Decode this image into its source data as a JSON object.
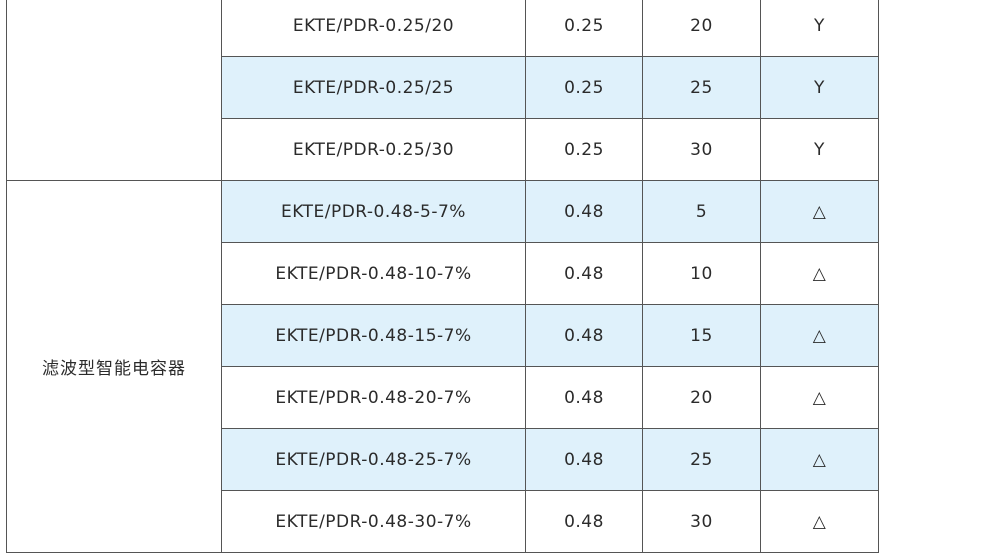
{
  "groups": [
    {
      "category": "",
      "rows": [
        {
          "model": "EKTE/PDR-0.25/20",
          "voltage": "0.25",
          "capacity": "20",
          "flag": "Y",
          "shaded": false
        },
        {
          "model": "EKTE/PDR-0.25/25",
          "voltage": "0.25",
          "capacity": "25",
          "flag": "Y",
          "shaded": true
        },
        {
          "model": "EKTE/PDR-0.25/30",
          "voltage": "0.25",
          "capacity": "30",
          "flag": "Y",
          "shaded": false
        }
      ]
    },
    {
      "category": "滤波型智能电容器",
      "rows": [
        {
          "model": "EKTE/PDR-0.48-5-7%",
          "voltage": "0.48",
          "capacity": "5",
          "flag": "△",
          "shaded": true
        },
        {
          "model": "EKTE/PDR-0.48-10-7%",
          "voltage": "0.48",
          "capacity": "10",
          "flag": "△",
          "shaded": false
        },
        {
          "model": "EKTE/PDR-0.48-15-7%",
          "voltage": "0.48",
          "capacity": "15",
          "flag": "△",
          "shaded": true
        },
        {
          "model": "EKTE/PDR-0.48-20-7%",
          "voltage": "0.48",
          "capacity": "20",
          "flag": "△",
          "shaded": false
        },
        {
          "model": "EKTE/PDR-0.48-25-7%",
          "voltage": "0.48",
          "capacity": "25",
          "flag": "△",
          "shaded": true
        },
        {
          "model": "EKTE/PDR-0.48-30-7%",
          "voltage": "0.48",
          "capacity": "30",
          "flag": "△",
          "shaded": false
        }
      ]
    }
  ],
  "colors": {
    "shaded_row": "#dff1fb",
    "border": "#555555",
    "text": "#2b2b2b"
  }
}
